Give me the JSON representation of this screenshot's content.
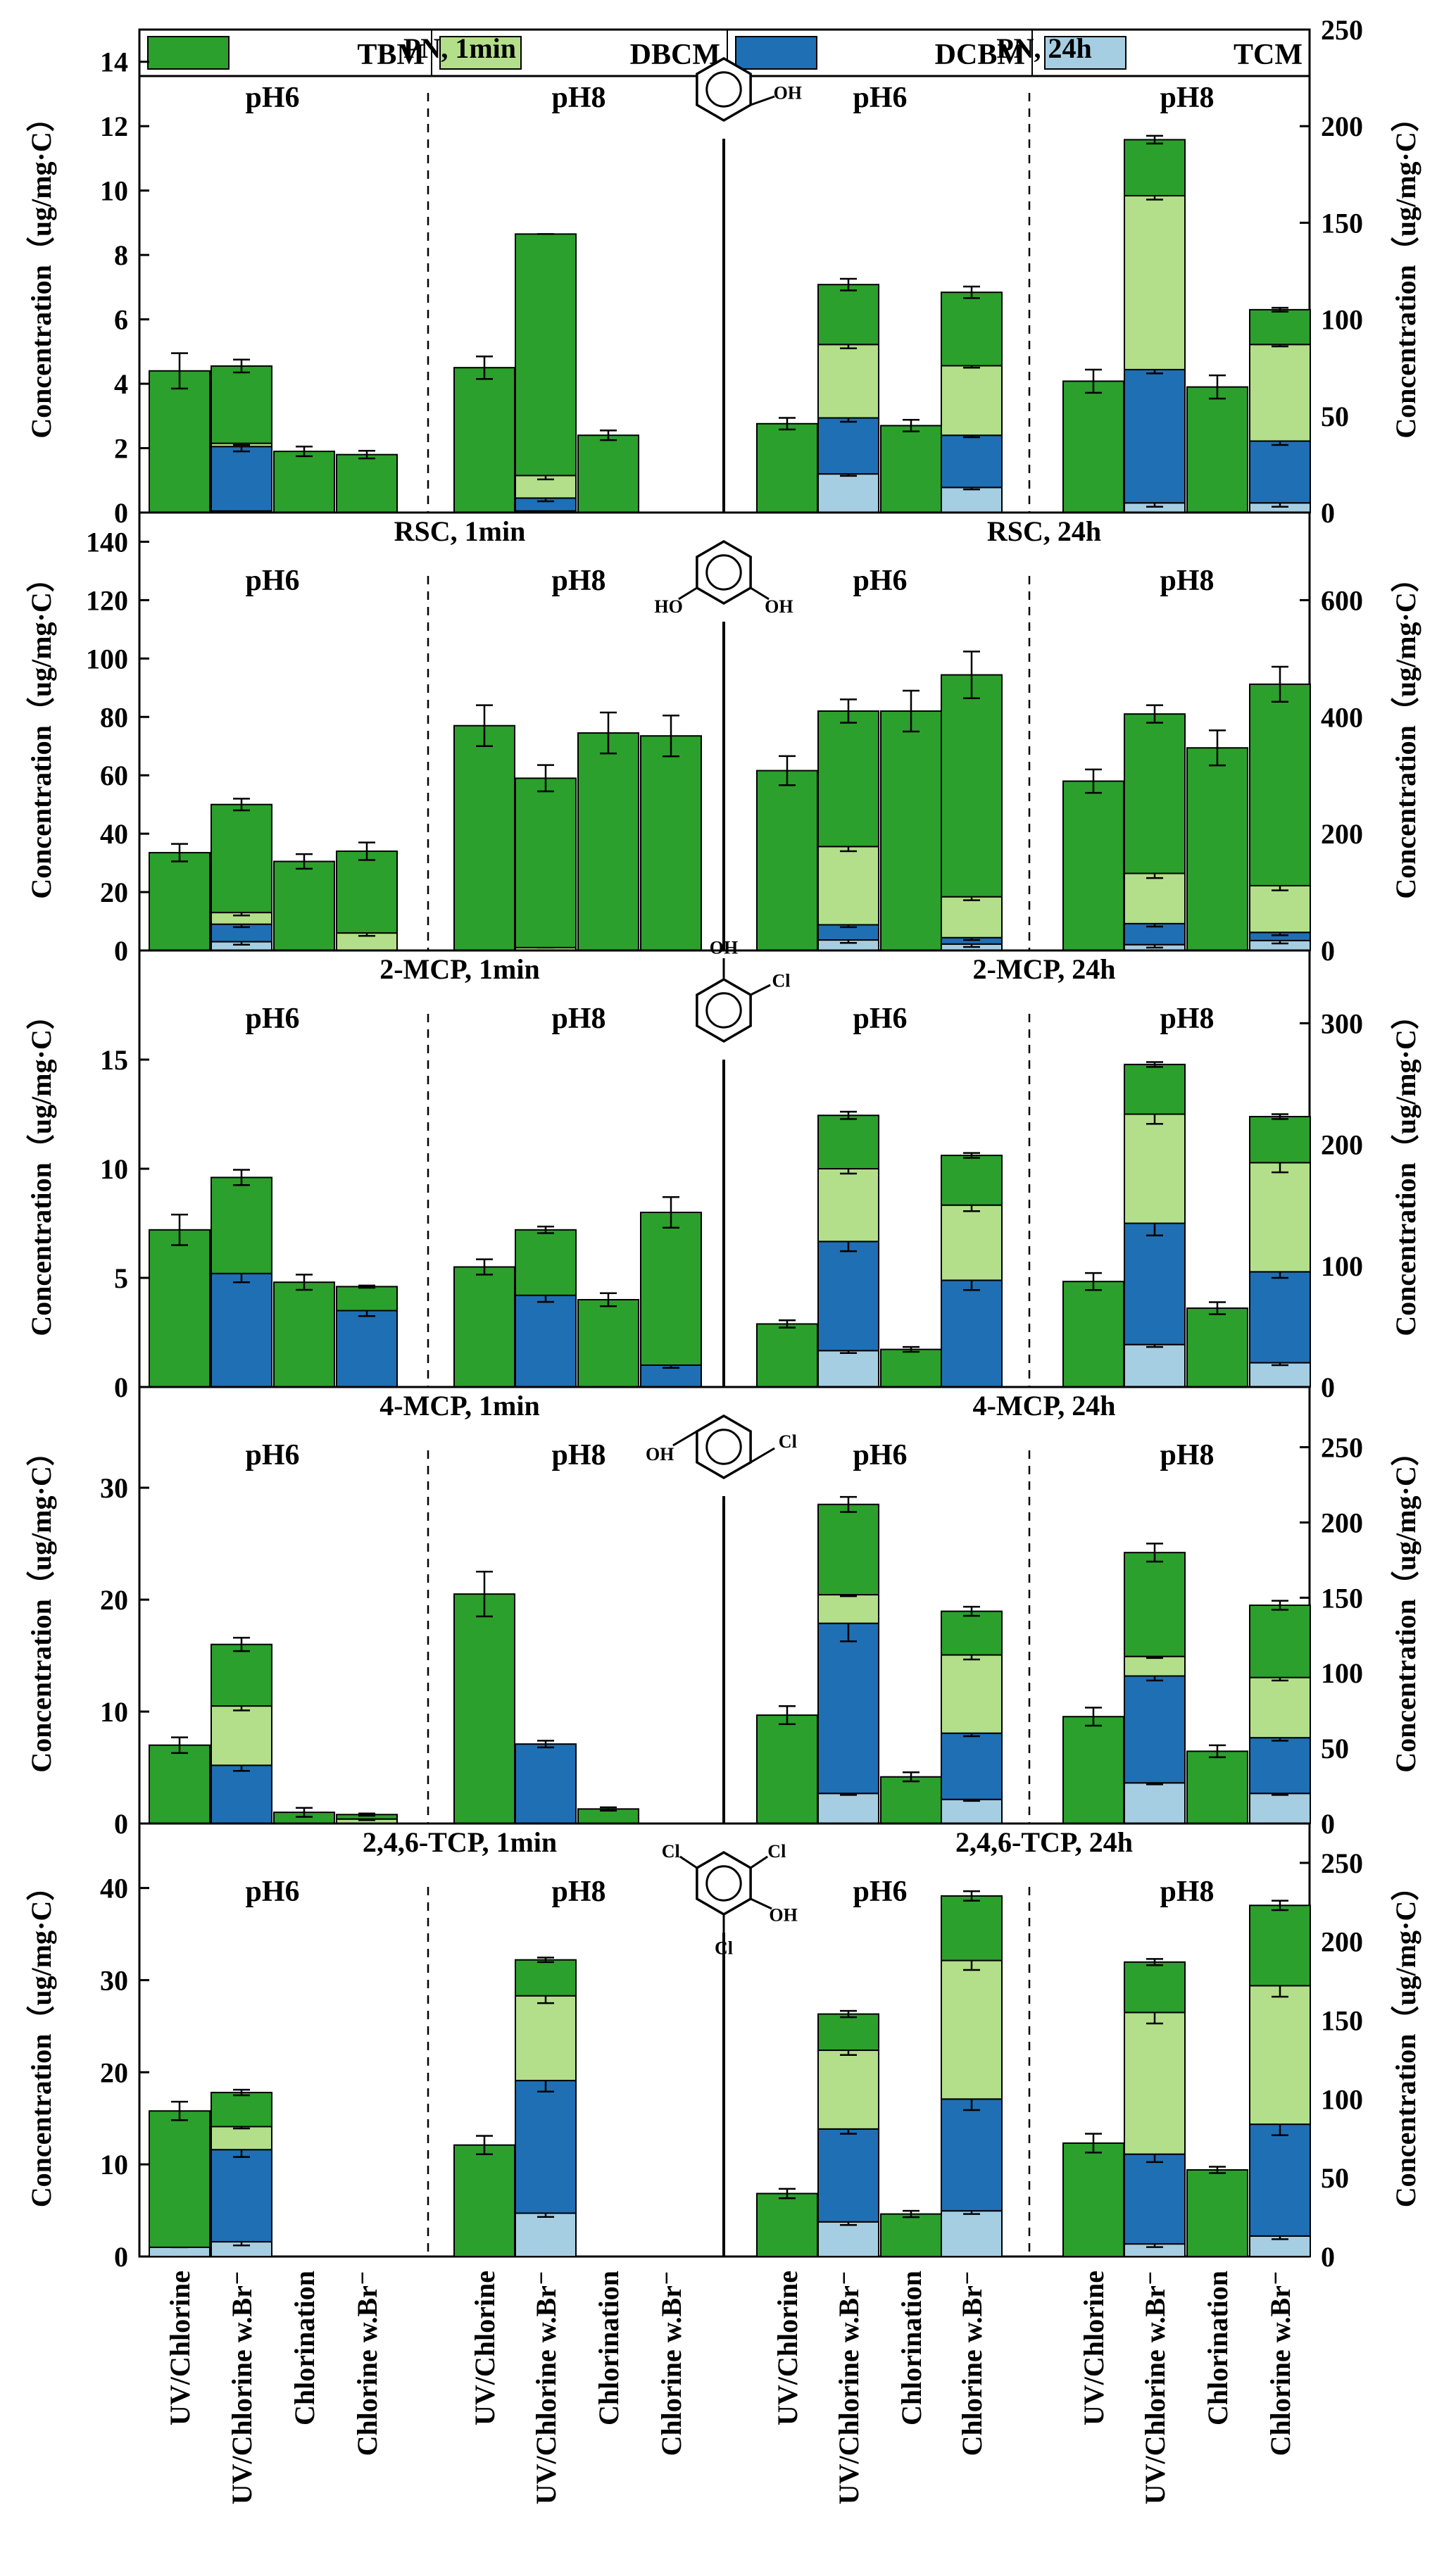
{
  "legend": [
    {
      "name": "TBM",
      "color": "#2ca02c"
    },
    {
      "name": "DBCM",
      "color": "#b3df8a"
    },
    {
      "name": "DCBM",
      "color": "#1f6fb4"
    },
    {
      "name": "TCM",
      "color": "#a6cee3"
    }
  ],
  "y_label": "Concentration（ug/mg·C）",
  "x_categories": [
    "UV/Chlorine",
    "UV/Chlorine w.Br⁻",
    "Chlorination",
    "Chlorine w.Br⁻"
  ],
  "chart_data": [
    {
      "type": "bar",
      "stacked": true,
      "compound": "PN",
      "title_left": "PN, 1min",
      "title_right": "PN, 24h",
      "ph_labels": [
        "pH6",
        "pH8",
        "pH6",
        "pH8"
      ],
      "left_axis": {
        "ylim": [
          0,
          15
        ],
        "ticks": [
          0,
          2,
          4,
          6,
          8,
          10,
          12,
          14
        ],
        "tick_labels": [
          "0",
          "2",
          "4",
          "6",
          "8",
          "10",
          "12",
          "14"
        ]
      },
      "right_axis": {
        "ylim": [
          0,
          250
        ],
        "ticks": [
          0,
          50,
          100,
          150,
          200,
          250
        ],
        "tick_labels": [
          "0",
          "50",
          "100",
          "150",
          "200",
          "250"
        ]
      },
      "groups": [
        [
          [
            4.4,
            0,
            0,
            0
          ],
          [
            2.4,
            0.1,
            2.0,
            0.05
          ],
          [
            1.9,
            0,
            0,
            0
          ],
          [
            1.8,
            0,
            0,
            0
          ]
        ],
        [
          [
            4.5,
            0,
            0,
            0
          ],
          [
            7.5,
            0.7,
            0.4,
            0.05
          ],
          [
            2.4,
            0,
            0,
            0
          ],
          [
            0,
            0,
            0,
            0
          ]
        ],
        [
          [
            46,
            0,
            0,
            0
          ],
          [
            31,
            38,
            29,
            20
          ],
          [
            45,
            0,
            0,
            0
          ],
          [
            38,
            36,
            27,
            13
          ]
        ],
        [
          [
            68,
            0,
            0,
            0
          ],
          [
            29,
            90,
            69,
            5
          ],
          [
            65,
            0,
            0,
            0
          ],
          [
            18,
            50,
            32,
            5
          ]
        ]
      ],
      "errors": [
        [
          [
            0.55,
            0,
            0,
            0
          ],
          [
            0.2,
            0.05,
            0.15,
            0
          ],
          [
            0.15,
            0,
            0,
            0
          ],
          [
            0.12,
            0,
            0,
            0
          ]
        ],
        [
          [
            0.35,
            0,
            0,
            0
          ],
          [
            0,
            0.12,
            0.1,
            0
          ],
          [
            0.15,
            0,
            0,
            0
          ],
          [
            0,
            0,
            0,
            0
          ]
        ],
        [
          [
            3,
            0,
            0,
            0
          ],
          [
            3,
            2,
            2,
            1
          ],
          [
            3,
            0,
            0,
            0
          ],
          [
            3,
            1,
            1,
            1
          ]
        ],
        [
          [
            6,
            0,
            0,
            0
          ],
          [
            2,
            2,
            2,
            2
          ],
          [
            6,
            0,
            0,
            0
          ],
          [
            1,
            1,
            2,
            2
          ]
        ]
      ]
    },
    {
      "type": "bar",
      "stacked": true,
      "compound": "RSC",
      "title_left": "RSC, 1min",
      "title_right": "RSC, 24h",
      "ph_labels": [
        "pH6",
        "pH8",
        "pH6",
        "pH8"
      ],
      "left_axis": {
        "ylim": [
          0,
          150
        ],
        "ticks": [
          0,
          20,
          40,
          60,
          80,
          100,
          120,
          140
        ],
        "tick_labels": [
          "0",
          "20",
          "40",
          "60",
          "80",
          "100",
          "120",
          "140"
        ]
      },
      "right_axis": {
        "ylim": [
          0,
          750
        ],
        "ticks": [
          0,
          200,
          400,
          600
        ],
        "tick_labels": [
          "0",
          "200",
          "400",
          "600"
        ]
      },
      "groups": [
        [
          [
            33.5,
            0,
            0,
            0
          ],
          [
            37,
            4,
            6,
            3
          ],
          [
            30.5,
            0,
            0,
            0
          ],
          [
            28,
            6,
            0,
            0
          ]
        ],
        [
          [
            77,
            0,
            0,
            0
          ],
          [
            58,
            1,
            0,
            0
          ],
          [
            74.5,
            0,
            0,
            0
          ],
          [
            73.5,
            0,
            0,
            0
          ]
        ],
        [
          [
            308,
            0,
            0,
            0
          ],
          [
            232,
            134,
            26,
            18
          ],
          [
            410,
            0,
            0,
            0
          ],
          [
            380,
            70,
            11,
            11
          ]
        ],
        [
          [
            290,
            0,
            0,
            0
          ],
          [
            273,
            86,
            36,
            10
          ],
          [
            347,
            0,
            0,
            0
          ],
          [
            345,
            80,
            14,
            17
          ]
        ]
      ],
      "errors": [
        [
          [
            3,
            0,
            0,
            0
          ],
          [
            2,
            1,
            1,
            1
          ],
          [
            2.5,
            0,
            0,
            0
          ],
          [
            3,
            1,
            0,
            0
          ]
        ],
        [
          [
            7,
            0,
            0,
            0
          ],
          [
            4.5,
            0,
            0,
            0
          ],
          [
            7,
            0,
            0,
            0
          ],
          [
            7,
            0,
            0,
            0
          ]
        ],
        [
          [
            25,
            0,
            0,
            0
          ],
          [
            20,
            8,
            4,
            5
          ],
          [
            35,
            0,
            0,
            0
          ],
          [
            40,
            6,
            4,
            5
          ]
        ],
        [
          [
            20,
            0,
            0,
            0
          ],
          [
            15,
            8,
            5,
            5
          ],
          [
            30,
            0,
            0,
            0
          ],
          [
            30,
            8,
            5,
            5
          ]
        ]
      ]
    },
    {
      "type": "bar",
      "stacked": true,
      "compound": "2-MCP",
      "title_left": "2-MCP, 1min",
      "title_right": "2-MCP, 24h",
      "ph_labels": [
        "pH6",
        "pH8",
        "pH6",
        "pH8"
      ],
      "left_axis": {
        "ylim": [
          0,
          20
        ],
        "ticks": [
          0,
          5,
          10,
          15
        ],
        "tick_labels": [
          "0",
          "5",
          "10",
          "15"
        ]
      },
      "right_axis": {
        "ylim": [
          0,
          360
        ],
        "ticks": [
          0,
          100,
          200,
          300
        ],
        "tick_labels": [
          "0",
          "100",
          "200",
          "300"
        ]
      },
      "groups": [
        [
          [
            7.2,
            0,
            0,
            0
          ],
          [
            4.4,
            0,
            5.2,
            0
          ],
          [
            4.8,
            0,
            0,
            0
          ],
          [
            1.1,
            0,
            3.5,
            0
          ]
        ],
        [
          [
            5.5,
            0,
            0,
            0
          ],
          [
            3.0,
            0,
            4.2,
            0
          ],
          [
            4.0,
            0,
            0,
            0
          ],
          [
            7.0,
            0,
            1.0,
            0
          ]
        ],
        [
          [
            52,
            0,
            0,
            0
          ],
          [
            44,
            60,
            90,
            30
          ],
          [
            31,
            0,
            0,
            0
          ],
          [
            41,
            62,
            88,
            0
          ]
        ],
        [
          [
            87,
            0,
            0,
            0
          ],
          [
            41,
            90,
            100,
            35
          ],
          [
            65,
            0,
            0,
            0
          ],
          [
            38,
            90,
            75,
            20
          ]
        ]
      ],
      "errors": [
        [
          [
            0.7,
            0,
            0,
            0
          ],
          [
            0.35,
            0,
            0.4,
            0
          ],
          [
            0.35,
            0,
            0,
            0
          ],
          [
            0.05,
            0,
            0.25,
            0
          ]
        ],
        [
          [
            0.35,
            0,
            0,
            0
          ],
          [
            0.15,
            0,
            0.3,
            0
          ],
          [
            0.3,
            0,
            0,
            0
          ],
          [
            0.7,
            0,
            0.12,
            0
          ]
        ],
        [
          [
            3,
            0,
            0,
            0
          ],
          [
            3,
            4,
            8,
            2
          ],
          [
            2,
            0,
            0,
            0
          ],
          [
            2,
            5,
            8,
            0
          ]
        ],
        [
          [
            7,
            0,
            0,
            0
          ],
          [
            2,
            8,
            10,
            2
          ],
          [
            5,
            0,
            0,
            0
          ],
          [
            2,
            8,
            5,
            2
          ]
        ]
      ]
    },
    {
      "type": "bar",
      "stacked": true,
      "compound": "4-MCP",
      "title_left": "4-MCP, 1min",
      "title_right": "4-MCP, 24h",
      "ph_labels": [
        "pH6",
        "pH8",
        "pH6",
        "pH8"
      ],
      "left_axis": {
        "ylim": [
          0,
          39
        ],
        "ticks": [
          0,
          10,
          20,
          30
        ],
        "tick_labels": [
          "0",
          "10",
          "20",
          "30"
        ]
      },
      "right_axis": {
        "ylim": [
          0,
          290
        ],
        "ticks": [
          0,
          50,
          100,
          150,
          200,
          250
        ],
        "tick_labels": [
          "0",
          "50",
          "100",
          "150",
          "200",
          "250"
        ]
      },
      "groups": [
        [
          [
            7.0,
            0,
            0,
            0
          ],
          [
            5.5,
            5.3,
            5.2,
            0
          ],
          [
            1.0,
            0,
            0,
            0
          ],
          [
            0.4,
            0.4,
            0,
            0
          ]
        ],
        [
          [
            20.5,
            0,
            0,
            0
          ],
          [
            0,
            0,
            7.1,
            0
          ],
          [
            1.3,
            0,
            0,
            0
          ],
          [
            0,
            0,
            0,
            0
          ]
        ],
        [
          [
            72,
            0,
            0,
            0
          ],
          [
            60,
            19,
            113,
            20
          ],
          [
            31,
            0,
            0,
            0
          ],
          [
            29,
            52,
            44,
            16
          ]
        ],
        [
          [
            71,
            0,
            0,
            0
          ],
          [
            69,
            13,
            71,
            27
          ],
          [
            48,
            0,
            0,
            0
          ],
          [
            48,
            40,
            37,
            20
          ]
        ]
      ],
      "errors": [
        [
          [
            0.7,
            0,
            0,
            0
          ],
          [
            0.6,
            0.4,
            0.5,
            0
          ],
          [
            0.4,
            0,
            0,
            0
          ],
          [
            0.1,
            0.1,
            0,
            0
          ]
        ],
        [
          [
            2.0,
            0,
            0,
            0
          ],
          [
            0,
            0,
            0.3,
            0
          ],
          [
            0.15,
            0,
            0,
            0
          ],
          [
            0,
            0,
            0,
            0
          ]
        ],
        [
          [
            6,
            0,
            0,
            0
          ],
          [
            5,
            1,
            12,
            1
          ],
          [
            3,
            0,
            0,
            0
          ],
          [
            3,
            3,
            2,
            1
          ]
        ],
        [
          [
            6,
            0,
            0,
            0
          ],
          [
            6,
            1,
            3,
            1
          ],
          [
            4,
            0,
            0,
            0
          ],
          [
            3,
            2,
            2,
            1
          ]
        ]
      ]
    },
    {
      "type": "bar",
      "stacked": true,
      "compound": "2,4,6-TCP",
      "title_left": "2,4,6-TCP, 1min",
      "title_right": "2,4,6-TCP, 24h",
      "ph_labels": [
        "pH6",
        "pH8",
        "pH6",
        "pH8"
      ],
      "left_axis": {
        "ylim": [
          0,
          47
        ],
        "ticks": [
          0,
          10,
          20,
          30,
          40
        ],
        "tick_labels": [
          "0",
          "10",
          "20",
          "30",
          "40"
        ]
      },
      "right_axis": {
        "ylim": [
          0,
          275
        ],
        "ticks": [
          0,
          50,
          100,
          150,
          200,
          250
        ],
        "tick_labels": [
          "0",
          "50",
          "100",
          "150",
          "200",
          "250"
        ]
      },
      "groups": [
        [
          [
            14.8,
            0,
            0,
            1.0
          ],
          [
            3.7,
            2.5,
            10,
            1.6
          ],
          [
            0,
            0,
            0,
            0
          ],
          [
            0,
            0,
            0,
            0
          ]
        ],
        [
          [
            12.1,
            0,
            0,
            0
          ],
          [
            3.9,
            9.2,
            14.4,
            4.7
          ],
          [
            0,
            0,
            0,
            0
          ],
          [
            0,
            0,
            0,
            0
          ]
        ],
        [
          [
            40,
            0,
            0,
            0
          ],
          [
            23,
            50,
            59,
            22
          ],
          [
            27,
            0,
            0,
            0
          ],
          [
            41,
            88,
            71,
            29
          ]
        ],
        [
          [
            72,
            0,
            0,
            0
          ],
          [
            32,
            90,
            57,
            8
          ],
          [
            55,
            0,
            0,
            0
          ],
          [
            51,
            88,
            71,
            13
          ]
        ]
      ],
      "errors": [
        [
          [
            1.0,
            0,
            0,
            0
          ],
          [
            0.3,
            0.2,
            0.8,
            0.4
          ],
          [
            0,
            0,
            0,
            0
          ],
          [
            0,
            0,
            0,
            0
          ]
        ],
        [
          [
            1.0,
            0,
            0,
            0
          ],
          [
            0.25,
            0.8,
            1.2,
            0.4
          ],
          [
            0,
            0,
            0,
            0
          ],
          [
            0,
            0,
            0,
            0
          ]
        ],
        [
          [
            3,
            0,
            0,
            0
          ],
          [
            2,
            3,
            3,
            2
          ],
          [
            2,
            0,
            0,
            0
          ],
          [
            3,
            6,
            7,
            2
          ]
        ],
        [
          [
            6,
            0,
            0,
            0
          ],
          [
            2,
            7,
            5,
            2
          ],
          [
            2,
            0,
            0,
            0
          ],
          [
            3,
            7,
            7,
            2
          ]
        ]
      ]
    }
  ]
}
